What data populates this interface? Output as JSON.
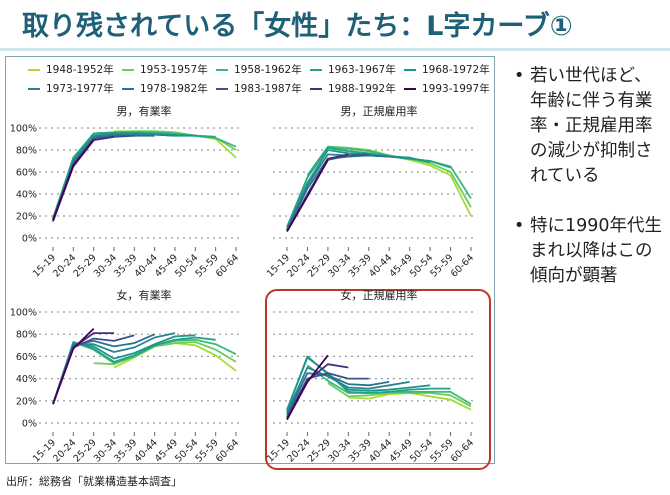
{
  "title": "取り残されている「女性」たち：L字カーブ①",
  "source": "出所：総務省「就業構造基本調査」",
  "notes": [
    {
      "bullet": "•",
      "text": "若い世代ほど、年齢に伴う有業率・正規雇用率の減少が抑制されている"
    },
    {
      "bullet": "•",
      "text": "特に1990年代生まれ以降はこの傾向が顕著"
    }
  ],
  "legend": [
    {
      "label": "1948-1952年",
      "color": "#a5db36"
    },
    {
      "label": "1953-1957年",
      "color": "#6ccd5a"
    },
    {
      "label": "1958-1962年",
      "color": "#3bbb75"
    },
    {
      "label": "1963-1967年",
      "color": "#20a486"
    },
    {
      "label": "1968-1972年",
      "color": "#1f948c"
    },
    {
      "label": "1973-1977年",
      "color": "#24868e"
    },
    {
      "label": "1978-1982年",
      "color": "#2c728e"
    },
    {
      "label": "1983-1987年",
      "color": "#3b528b"
    },
    {
      "label": "1988-1992年",
      "color": "#472d7b"
    },
    {
      "label": "1993-1997年",
      "color": "#440154"
    }
  ],
  "highlight_color": "#b83a24",
  "chart_data": [
    {
      "type": "line",
      "title": "男，有業率",
      "ylim": [
        0,
        100
      ],
      "grid": true,
      "yticks": [
        "0%",
        "20%",
        "40%",
        "60%",
        "80%",
        "100%"
      ],
      "show_yticks": true,
      "categories": [
        "15-19",
        "20-24",
        "25-29",
        "30-34",
        "35-39",
        "40-44",
        "45-49",
        "50-54",
        "55-59",
        "60-64"
      ],
      "series": [
        {
          "name": "1948-1952年",
          "values": [
            null,
            null,
            null,
            97,
            97,
            97,
            96,
            93,
            90,
            73
          ]
        },
        {
          "name": "1953-1957年",
          "values": [
            null,
            null,
            95,
            96,
            97,
            97,
            96,
            93,
            91,
            80
          ]
        },
        {
          "name": "1958-1962年",
          "values": [
            null,
            72,
            95,
            96,
            96,
            96,
            95,
            93,
            91,
            83
          ]
        },
        {
          "name": "1963-1967年",
          "values": [
            18,
            73,
            95,
            96,
            96,
            95,
            94,
            93,
            92,
            null
          ]
        },
        {
          "name": "1968-1972年",
          "values": [
            17,
            70,
            93,
            95,
            95,
            94,
            93,
            93,
            null,
            null
          ]
        },
        {
          "name": "1973-1977年",
          "values": [
            17,
            70,
            92,
            94,
            94,
            94,
            93,
            null,
            null,
            null
          ]
        },
        {
          "name": "1978-1982年",
          "values": [
            17,
            68,
            91,
            93,
            93,
            93,
            null,
            null,
            null,
            null
          ]
        },
        {
          "name": "1983-1987年",
          "values": [
            16,
            66,
            90,
            92,
            93,
            null,
            null,
            null,
            null,
            null
          ]
        },
        {
          "name": "1988-1992年",
          "values": [
            15,
            65,
            89,
            92,
            null,
            null,
            null,
            null,
            null,
            null
          ]
        },
        {
          "name": "1993-1997年",
          "values": [
            16,
            66,
            89,
            null,
            null,
            null,
            null,
            null,
            null,
            null
          ]
        }
      ]
    },
    {
      "type": "line",
      "title": "男，正規雇用率",
      "ylim": [
        0,
        100
      ],
      "grid": true,
      "show_yticks": false,
      "categories": [
        "15-19",
        "20-24",
        "25-29",
        "30-34",
        "35-39",
        "40-44",
        "45-49",
        "50-54",
        "55-59",
        "60-64"
      ],
      "series": [
        {
          "name": "1948-1952年",
          "values": [
            null,
            null,
            null,
            82,
            79,
            75,
            71,
            66,
            57,
            20
          ]
        },
        {
          "name": "1953-1957年",
          "values": [
            null,
            null,
            83,
            82,
            80,
            75,
            72,
            68,
            60,
            28
          ]
        },
        {
          "name": "1958-1962年",
          "values": [
            null,
            57,
            83,
            81,
            79,
            75,
            72,
            70,
            65,
            36
          ]
        },
        {
          "name": "1963-1967年",
          "values": [
            10,
            55,
            82,
            79,
            77,
            74,
            72,
            70,
            64,
            null
          ]
        },
        {
          "name": "1968-1972年",
          "values": [
            9,
            50,
            80,
            77,
            76,
            74,
            73,
            69,
            null,
            null
          ]
        },
        {
          "name": "1973-1977年",
          "values": [
            8,
            48,
            76,
            75,
            75,
            74,
            73,
            null,
            null,
            null
          ]
        },
        {
          "name": "1978-1982年",
          "values": [
            7,
            45,
            72,
            74,
            75,
            74,
            null,
            null,
            null,
            null
          ]
        },
        {
          "name": "1983-1987年",
          "values": [
            6,
            40,
            71,
            75,
            76,
            null,
            null,
            null,
            null,
            null
          ]
        },
        {
          "name": "1988-1992年",
          "values": [
            6,
            38,
            72,
            76,
            null,
            null,
            null,
            null,
            null,
            null
          ]
        },
        {
          "name": "1993-1997年",
          "values": [
            6,
            38,
            71,
            null,
            null,
            null,
            null,
            null,
            null,
            null
          ]
        }
      ]
    },
    {
      "type": "line",
      "title": "女，有業率",
      "ylim": [
        0,
        100
      ],
      "grid": true,
      "yticks": [
        "0%",
        "20%",
        "40%",
        "60%",
        "80%",
        "100%"
      ],
      "show_yticks": true,
      "categories": [
        "15-19",
        "20-24",
        "25-29",
        "30-34",
        "35-39",
        "40-44",
        "45-49",
        "50-54",
        "55-59",
        "60-64"
      ],
      "series": [
        {
          "name": "1948-1952年",
          "values": [
            null,
            null,
            null,
            50,
            59,
            69,
            72,
            70,
            61,
            47
          ]
        },
        {
          "name": "1953-1957年",
          "values": [
            null,
            null,
            54,
            53,
            60,
            69,
            72,
            73,
            66,
            55
          ]
        },
        {
          "name": "1958-1962年",
          "values": [
            null,
            73,
            66,
            54,
            60,
            70,
            74,
            75,
            71,
            62
          ]
        },
        {
          "name": "1963-1967年",
          "values": [
            17,
            73,
            67,
            55,
            61,
            70,
            75,
            77,
            75,
            null
          ]
        },
        {
          "name": "1968-1972年",
          "values": [
            17,
            72,
            69,
            58,
            63,
            71,
            78,
            79,
            null,
            null
          ]
        },
        {
          "name": "1973-1977年",
          "values": [
            17,
            71,
            71,
            64,
            68,
            77,
            81,
            null,
            null,
            null
          ]
        },
        {
          "name": "1978-1982年",
          "values": [
            17,
            70,
            74,
            69,
            72,
            80,
            null,
            null,
            null,
            null
          ]
        },
        {
          "name": "1983-1987年",
          "values": [
            17,
            68,
            76,
            74,
            79,
            null,
            null,
            null,
            null,
            null
          ]
        },
        {
          "name": "1988-1992年",
          "values": [
            17,
            68,
            81,
            81,
            null,
            null,
            null,
            null,
            null,
            null
          ]
        },
        {
          "name": "1993-1997年",
          "values": [
            17,
            67,
            85,
            null,
            null,
            null,
            null,
            null,
            null,
            null
          ]
        }
      ]
    },
    {
      "type": "line",
      "title": "女，正規雇用率",
      "ylim": [
        0,
        100
      ],
      "grid": true,
      "show_yticks": false,
      "highlighted": true,
      "categories": [
        "15-19",
        "20-24",
        "25-29",
        "30-34",
        "35-39",
        "40-44",
        "45-49",
        "50-54",
        "55-59",
        "60-64"
      ],
      "series": [
        {
          "name": "1948-1952年",
          "values": [
            null,
            null,
            null,
            23,
            22,
            26,
            27,
            24,
            21,
            12
          ]
        },
        {
          "name": "1953-1957年",
          "values": [
            null,
            null,
            36,
            24,
            25,
            27,
            27,
            27,
            25,
            15
          ]
        },
        {
          "name": "1958-1962年",
          "values": [
            null,
            52,
            38,
            27,
            27,
            28,
            28,
            28,
            28,
            17
          ]
        },
        {
          "name": "1963-1967年",
          "values": [
            12,
            59,
            45,
            28,
            27,
            28,
            30,
            31,
            31,
            null
          ]
        },
        {
          "name": "1968-1972年",
          "values": [
            11,
            60,
            44,
            30,
            29,
            30,
            32,
            34,
            null,
            null
          ]
        },
        {
          "name": "1973-1977年",
          "values": [
            9,
            50,
            42,
            32,
            31,
            34,
            37,
            null,
            null,
            null
          ]
        },
        {
          "name": "1978-1982年",
          "values": [
            7,
            45,
            43,
            35,
            34,
            37,
            null,
            null,
            null,
            null
          ]
        },
        {
          "name": "1983-1987年",
          "values": [
            5,
            40,
            45,
            40,
            40,
            null,
            null,
            null,
            null,
            null
          ]
        },
        {
          "name": "1988-1992年",
          "values": [
            4,
            38,
            53,
            50,
            null,
            null,
            null,
            null,
            null,
            null
          ]
        },
        {
          "name": "1993-1997年",
          "values": [
            3,
            37,
            61,
            null,
            null,
            null,
            null,
            null,
            null,
            null
          ]
        }
      ]
    }
  ]
}
